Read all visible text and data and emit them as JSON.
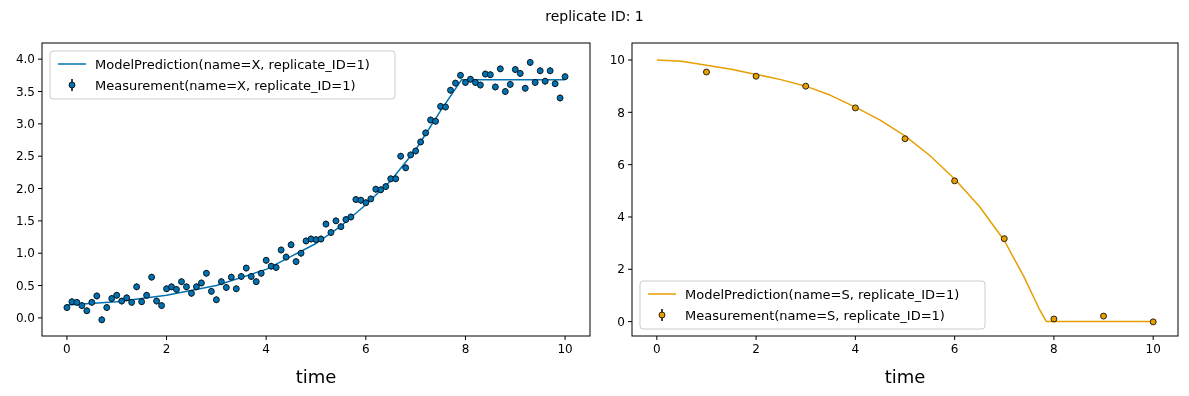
{
  "chart_data": [
    {
      "type": "line",
      "title": "replicate ID: 1",
      "xlabel": "time",
      "xlim": [
        -0.5,
        10.5
      ],
      "xticks": [
        0,
        2,
        4,
        6,
        8,
        10
      ],
      "ylim": [
        -0.28,
        4.25
      ],
      "yticks": [
        {
          "value": 0,
          "label": "0.0"
        },
        {
          "value": 0.5,
          "label": "0.5"
        },
        {
          "value": 1,
          "label": "1.0"
        },
        {
          "value": 1.5,
          "label": "1.5"
        },
        {
          "value": 2,
          "label": "2.0"
        },
        {
          "value": 2.5,
          "label": "2.5"
        },
        {
          "value": 3,
          "label": "3.0"
        },
        {
          "value": 3.5,
          "label": "3.5"
        },
        {
          "value": 4,
          "label": "4.0"
        }
      ],
      "legend": "top left",
      "grid": false,
      "series": [
        {
          "name": "ModelPrediction(name=X, replicate_ID=1)",
          "color": "#0072b2",
          "line_style": "solid",
          "marker": "none",
          "x": [
            0,
            1,
            2,
            3,
            4,
            4.5,
            5,
            5.5,
            6,
            6.5,
            7,
            7.5,
            7.92,
            8.5,
            10
          ],
          "values": [
            0.2,
            0.25,
            0.35,
            0.5,
            0.75,
            0.95,
            1.15,
            1.42,
            1.75,
            2.12,
            2.6,
            3.2,
            3.68,
            3.68,
            3.68
          ]
        },
        {
          "name": "Measurement(name=X, replicate_ID=1)",
          "type": "scatter",
          "color": "#0072b2",
          "marker": "circle",
          "x": [
            0,
            0.1,
            0.2,
            0.3,
            0.4,
            0.5,
            0.6,
            0.7,
            0.8,
            0.9,
            1,
            1.1,
            1.2,
            1.3,
            1.4,
            1.5,
            1.6,
            1.7,
            1.8,
            1.9,
            2,
            2.1,
            2.2,
            2.3,
            2.4,
            2.5,
            2.6,
            2.7,
            2.8,
            2.9,
            3,
            3.1,
            3.2,
            3.3,
            3.4,
            3.5,
            3.6,
            3.7,
            3.8,
            3.9,
            4,
            4.1,
            4.2,
            4.3,
            4.4,
            4.5,
            4.6,
            4.7,
            4.8,
            4.9,
            5,
            5.1,
            5.2,
            5.3,
            5.4,
            5.5,
            5.6,
            5.7,
            5.8,
            5.9,
            6,
            6.1,
            6.2,
            6.3,
            6.4,
            6.5,
            6.6,
            6.7,
            6.8,
            6.9,
            7,
            7.1,
            7.2,
            7.3,
            7.4,
            7.5,
            7.6,
            7.7,
            7.8,
            7.9,
            8,
            8.1,
            8.2,
            8.3,
            8.4,
            8.5,
            8.6,
            8.7,
            8.8,
            8.9,
            9,
            9.1,
            9.2,
            9.3,
            9.4,
            9.5,
            9.6,
            9.7,
            9.8,
            9.9,
            10
          ],
          "values": [
            0.16,
            0.25,
            0.24,
            0.19,
            0.11,
            0.24,
            0.34,
            -0.03,
            0.16,
            0.3,
            0.35,
            0.26,
            0.31,
            0.24,
            0.48,
            0.25,
            0.35,
            0.63,
            0.26,
            0.19,
            0.45,
            0.48,
            0.44,
            0.56,
            0.48,
            0.38,
            0.48,
            0.54,
            0.69,
            0.41,
            0.28,
            0.56,
            0.47,
            0.63,
            0.45,
            0.64,
            0.77,
            0.64,
            0.56,
            0.69,
            0.89,
            0.8,
            0.78,
            1.05,
            0.94,
            1.13,
            0.87,
            1,
            1.19,
            1.22,
            1.21,
            1.22,
            1.45,
            1.32,
            1.5,
            1.41,
            1.52,
            1.56,
            1.83,
            1.82,
            1.78,
            1.84,
            1.99,
            1.98,
            2.03,
            2.15,
            2.15,
            2.5,
            2.32,
            2.52,
            2.58,
            2.72,
            2.86,
            3.06,
            3.04,
            3.27,
            3.26,
            3.52,
            3.63,
            3.75,
            3.64,
            3.69,
            3.64,
            3.6,
            3.77,
            3.76,
            3.57,
            3.85,
            3.5,
            3.61,
            3.84,
            3.78,
            3.55,
            3.95,
            3.64,
            3.82,
            3.66,
            3.82,
            3.62,
            3.4,
            3.73
          ],
          "errors": [
            0.05,
            0.05,
            0.05,
            0.05,
            0.05,
            0.05,
            0.05,
            0.05,
            0.05,
            0.05,
            0.05,
            0.05,
            0.05,
            0.05,
            0.05,
            0.05,
            0.05,
            0.05,
            0.05,
            0.05,
            0.05,
            0.05,
            0.05,
            0.05,
            0.05,
            0.05,
            0.05,
            0.05,
            0.05,
            0.05,
            0.05,
            0.05,
            0.05,
            0.05,
            0.05,
            0.05,
            0.05,
            0.05,
            0.05,
            0.05,
            0.05,
            0.05,
            0.05,
            0.05,
            0.05,
            0.05,
            0.05,
            0.05,
            0.05,
            0.05,
            0.05,
            0.05,
            0.05,
            0.05,
            0.05,
            0.05,
            0.05,
            0.05,
            0.05,
            0.05,
            0.05,
            0.05,
            0.05,
            0.05,
            0.05,
            0.05,
            0.05,
            0.05,
            0.05,
            0.05,
            0.05,
            0.05,
            0.05,
            0.05,
            0.05,
            0.05,
            0.05,
            0.05,
            0.05,
            0.05,
            0.05,
            0.05,
            0.05,
            0.05,
            0.05,
            0.05,
            0.05,
            0.05,
            0.05,
            0.05,
            0.05,
            0.05,
            0.05,
            0.05,
            0.05,
            0.05,
            0.05,
            0.05,
            0.05,
            0.05,
            0.05
          ]
        }
      ]
    },
    {
      "type": "line",
      "xlabel": "time",
      "xlim": [
        -0.5,
        10.5
      ],
      "xticks": [
        0,
        2,
        4,
        6,
        8,
        10
      ],
      "ylim": [
        -0.55,
        10.65
      ],
      "yticks": [
        0,
        2,
        4,
        6,
        8,
        10
      ],
      "legend": "bottom left",
      "grid": false,
      "series": [
        {
          "name": "ModelPrediction(name=S, replicate_ID=1)",
          "color": "#e69f00",
          "line_style": "solid",
          "marker": "none",
          "x": [
            0,
            0.5,
            1,
            1.5,
            2,
            2.5,
            3,
            3.5,
            4,
            4.5,
            5,
            5.5,
            6,
            6.5,
            7,
            7.4,
            7.7,
            7.85,
            10
          ],
          "values": [
            10,
            9.95,
            9.8,
            9.65,
            9.45,
            9.25,
            9,
            8.65,
            8.2,
            7.7,
            7.1,
            6.35,
            5.45,
            4.4,
            3.1,
            1.7,
            0.5,
            0,
            0
          ]
        },
        {
          "name": "Measurement(name=S, replicate_ID=1)",
          "type": "scatter",
          "color": "#e69f00",
          "marker": "circle",
          "x": [
            1,
            2,
            3,
            4,
            5,
            6,
            7,
            8,
            9,
            10
          ],
          "values": [
            9.54,
            9.38,
            9,
            8.17,
            6.99,
            5.38,
            3.17,
            0.1,
            0.21,
            -0.01
          ],
          "errors": [
            0.05,
            0.05,
            0.05,
            0.05,
            0.05,
            0.05,
            0.05,
            0.05,
            0.05,
            0.05
          ]
        }
      ]
    }
  ]
}
